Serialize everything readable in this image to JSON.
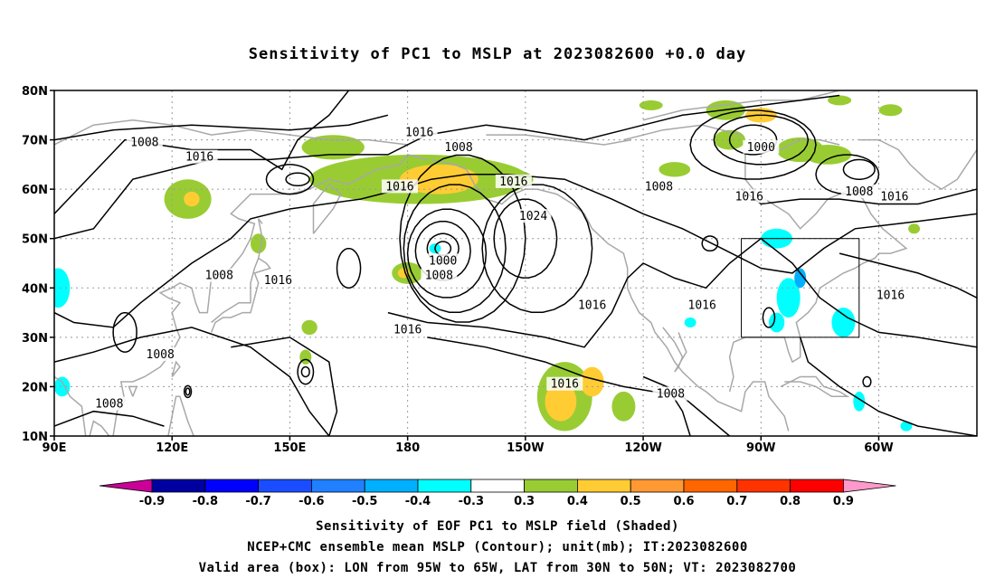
{
  "title": "Sensitivity of PC1 to MSLP at 2023082600 +0.0 day",
  "map": {
    "lat_labels": [
      "80N",
      "70N",
      "60N",
      "50N",
      "40N",
      "30N",
      "20N",
      "10N"
    ],
    "lon_labels": [
      "90E",
      "120E",
      "150E",
      "180",
      "150W",
      "120W",
      "90W",
      "60W"
    ],
    "valid_box": {
      "lon_from": "95W",
      "lon_to": "65W",
      "lat_from": "30N",
      "lat_to": "50N"
    },
    "contour_labels": [
      {
        "text": "1016",
        "lon": -177,
        "lat": 71.5
      },
      {
        "text": "1008",
        "lon": 113,
        "lat": 69.5
      },
      {
        "text": "1016",
        "lon": 127,
        "lat": 66.5
      },
      {
        "text": "1008",
        "lon": -167,
        "lat": 68.5
      },
      {
        "text": "1016",
        "lon": -182,
        "lat": 60.5
      },
      {
        "text": "1016",
        "lon": -153,
        "lat": 61.5
      },
      {
        "text": "1024",
        "lon": -148,
        "lat": 54.5
      },
      {
        "text": "1008",
        "lon": -116,
        "lat": 60.5
      },
      {
        "text": "1000",
        "lon": -90,
        "lat": 68.5
      },
      {
        "text": "1016",
        "lon": -93,
        "lat": 58.5
      },
      {
        "text": "1008",
        "lon": -65,
        "lat": 59.5
      },
      {
        "text": "1016",
        "lon": -56,
        "lat": 58.5
      },
      {
        "text": "1008",
        "lon": 132,
        "lat": 42.5
      },
      {
        "text": "1016",
        "lon": 147,
        "lat": 41.5
      },
      {
        "text": "1000",
        "lon": -171,
        "lat": 45.5
      },
      {
        "text": "1008",
        "lon": -172,
        "lat": 42.5
      },
      {
        "text": "1016",
        "lon": -133,
        "lat": 36.5
      },
      {
        "text": "1016",
        "lon": -105,
        "lat": 36.5
      },
      {
        "text": "1016",
        "lon": -57,
        "lat": 38.5
      },
      {
        "text": "1016",
        "lon": -180,
        "lat": 31.5
      },
      {
        "text": "1008",
        "lon": 117,
        "lat": 26.5
      },
      {
        "text": "1016",
        "lon": -140,
        "lat": 20.5
      },
      {
        "text": "1008",
        "lon": -113,
        "lat": 18.5
      },
      {
        "text": "1008",
        "lon": 104,
        "lat": 16.5
      }
    ],
    "shaded_blobs": [
      {
        "lon": -177,
        "lat": 62,
        "rx": 28,
        "ry": 5,
        "level": "0.4"
      },
      {
        "lon": -172,
        "lat": 62,
        "rx": 10,
        "ry": 3,
        "level": "0.5"
      },
      {
        "lon": -154,
        "lat": 62,
        "rx": 6,
        "ry": 2,
        "level": "0.4"
      },
      {
        "lon": 161,
        "lat": 68.5,
        "rx": 8,
        "ry": 2.5,
        "level": "0.4"
      },
      {
        "lon": 124,
        "lat": 58,
        "rx": 6,
        "ry": 4,
        "level": "0.4"
      },
      {
        "lon": 125,
        "lat": 58,
        "rx": 2,
        "ry": 1.5,
        "level": "0.5"
      },
      {
        "lon": -180,
        "lat": 43,
        "rx": 4,
        "ry": 2.2,
        "level": "0.4"
      },
      {
        "lon": -181,
        "lat": 43,
        "rx": 1.5,
        "ry": 1,
        "level": "0.5"
      },
      {
        "lon": -140,
        "lat": 18,
        "rx": 7,
        "ry": 7,
        "level": "0.4"
      },
      {
        "lon": -141,
        "lat": 17,
        "rx": 4,
        "ry": 4,
        "level": "0.5"
      },
      {
        "lon": -133,
        "lat": 21,
        "rx": 3,
        "ry": 3,
        "level": "0.5"
      },
      {
        "lon": -125,
        "lat": 16,
        "rx": 3,
        "ry": 3,
        "level": "0.4"
      },
      {
        "lon": -99,
        "lat": 76,
        "rx": 5,
        "ry": 2,
        "level": "0.4"
      },
      {
        "lon": -90,
        "lat": 75,
        "rx": 4,
        "ry": 1.5,
        "level": "0.5"
      },
      {
        "lon": -98,
        "lat": 70,
        "rx": 4,
        "ry": 2,
        "level": "0.4"
      },
      {
        "lon": -80,
        "lat": 68,
        "rx": 6,
        "ry": 2.5,
        "level": "0.4"
      },
      {
        "lon": -73,
        "lat": 67,
        "rx": 6,
        "ry": 2,
        "level": "0.4"
      },
      {
        "lon": -112,
        "lat": 64,
        "rx": 4,
        "ry": 1.5,
        "level": "0.4"
      },
      {
        "lon": 155,
        "lat": 32,
        "rx": 2,
        "ry": 1.5,
        "level": "0.4"
      },
      {
        "lon": 154,
        "lat": 26,
        "rx": 1.5,
        "ry": 1.5,
        "level": "0.4"
      },
      {
        "lon": 142,
        "lat": 49,
        "rx": 2,
        "ry": 2,
        "level": "0.4"
      },
      {
        "lon": -118,
        "lat": 77,
        "rx": 3,
        "ry": 1,
        "level": "0.4"
      },
      {
        "lon": -70,
        "lat": 78,
        "rx": 3,
        "ry": 1,
        "level": "0.4"
      },
      {
        "lon": -57,
        "lat": 76,
        "rx": 3,
        "ry": 1.2,
        "level": "0.4"
      },
      {
        "lon": -51,
        "lat": 52,
        "rx": 1.5,
        "ry": 1,
        "level": "0.4"
      },
      {
        "lon": -86,
        "lat": 50,
        "rx": 4,
        "ry": 2,
        "level": "-0.3"
      },
      {
        "lon": -83,
        "lat": 38,
        "rx": 3,
        "ry": 4,
        "level": "-0.3"
      },
      {
        "lon": -80,
        "lat": 42,
        "rx": 1.5,
        "ry": 2,
        "level": "-0.4"
      },
      {
        "lon": -86,
        "lat": 33,
        "rx": 2,
        "ry": 2,
        "level": "-0.3"
      },
      {
        "lon": -69,
        "lat": 33,
        "rx": 3,
        "ry": 3,
        "level": "-0.3"
      },
      {
        "lon": -65,
        "lat": 17,
        "rx": 1.5,
        "ry": 2,
        "level": "-0.3"
      },
      {
        "lon": -173,
        "lat": 48,
        "rx": 1.5,
        "ry": 1,
        "level": "-0.3"
      },
      {
        "lon": -53,
        "lat": 12,
        "rx": 1.5,
        "ry": 1,
        "level": "-0.3"
      },
      {
        "lon": 91,
        "lat": 40,
        "rx": 3,
        "ry": 4,
        "level": "-0.3"
      },
      {
        "lon": 92,
        "lat": 20,
        "rx": 2,
        "ry": 2,
        "level": "-0.3"
      },
      {
        "lon": -108,
        "lat": 33,
        "rx": 1.5,
        "ry": 1,
        "level": "-0.3"
      }
    ]
  },
  "colorbar": {
    "labels": [
      "-0.9",
      "-0.8",
      "-0.7",
      "-0.6",
      "-0.5",
      "-0.4",
      "-0.3",
      "0.3",
      "0.4",
      "0.5",
      "0.6",
      "0.7",
      "0.8",
      "0.9"
    ],
    "colors": [
      "#0000a0",
      "#0000ff",
      "#1a4dff",
      "#2080ff",
      "#00b0ff",
      "#00ffff",
      "#ffffff",
      "#99cc33",
      "#ffcc33",
      "#ff9933",
      "#ff6600",
      "#ff3300",
      "#ff0000"
    ],
    "low_arrow_color": "#cc0099",
    "high_arrow_color": "#ff99cc"
  },
  "footer": {
    "line1": "Sensitivity of EOF PC1 to MSLP field (Shaded)",
    "line2": "NCEP+CMC ensemble mean MSLP (Contour); unit(mb); IT:2023082600",
    "line3": "Valid area (box): LON from 95W to 65W, LAT from 30N to 50N; VT: 2023082700"
  }
}
